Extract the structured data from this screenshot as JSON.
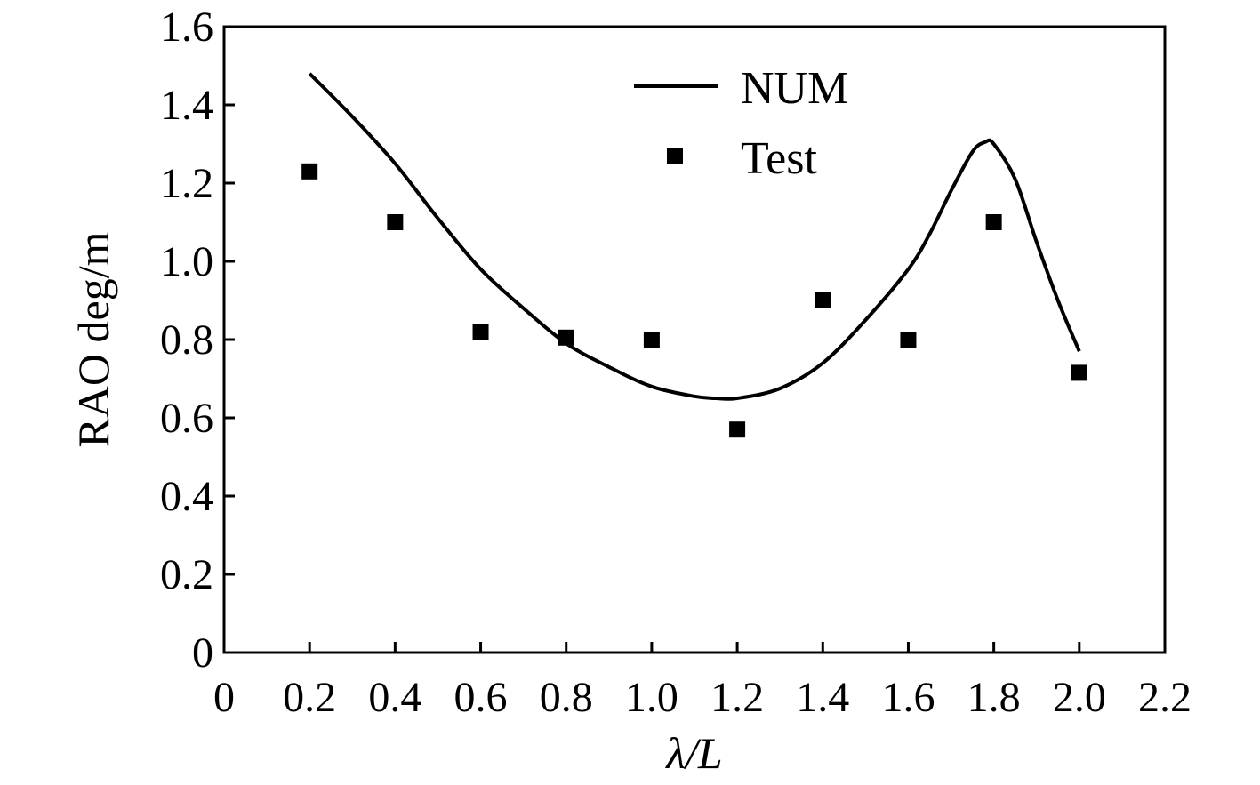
{
  "chart_data": {
    "type": "line",
    "xlabel": "λ/L",
    "ylabel": "RAO deg/m",
    "xlim": [
      0,
      2.2
    ],
    "ylim": [
      0,
      1.6
    ],
    "x_ticks": [
      "0",
      "0.2",
      "0.4",
      "0.6",
      "0.8",
      "1.0",
      "1.2",
      "1.4",
      "1.6",
      "1.8",
      "2.0",
      "2.2"
    ],
    "y_ticks": [
      "0",
      "0.2",
      "0.4",
      "0.6",
      "0.8",
      "1.0",
      "1.2",
      "1.4",
      "1.6"
    ],
    "grid": false,
    "legend_position": "top-right",
    "series": [
      {
        "name": "NUM",
        "style": "line",
        "color": "#000000",
        "x": [
          0.2,
          0.3,
          0.4,
          0.5,
          0.6,
          0.7,
          0.8,
          0.9,
          1.0,
          1.1,
          1.15,
          1.2,
          1.3,
          1.4,
          1.5,
          1.6,
          1.65,
          1.7,
          1.75,
          1.78,
          1.8,
          1.85,
          1.9,
          1.95,
          2.0
        ],
        "y": [
          1.48,
          1.37,
          1.25,
          1.11,
          0.98,
          0.88,
          0.79,
          0.73,
          0.68,
          0.655,
          0.65,
          0.65,
          0.675,
          0.74,
          0.85,
          0.98,
          1.07,
          1.18,
          1.28,
          1.305,
          1.3,
          1.21,
          1.05,
          0.9,
          0.77
        ]
      },
      {
        "name": "Test",
        "style": "marker-square",
        "color": "#000000",
        "x": [
          0.2,
          0.4,
          0.6,
          0.8,
          1.0,
          1.2,
          1.4,
          1.6,
          1.8,
          2.0
        ],
        "y": [
          1.23,
          1.1,
          0.82,
          0.805,
          0.8,
          0.57,
          0.9,
          0.8,
          1.1,
          0.715
        ]
      }
    ]
  }
}
